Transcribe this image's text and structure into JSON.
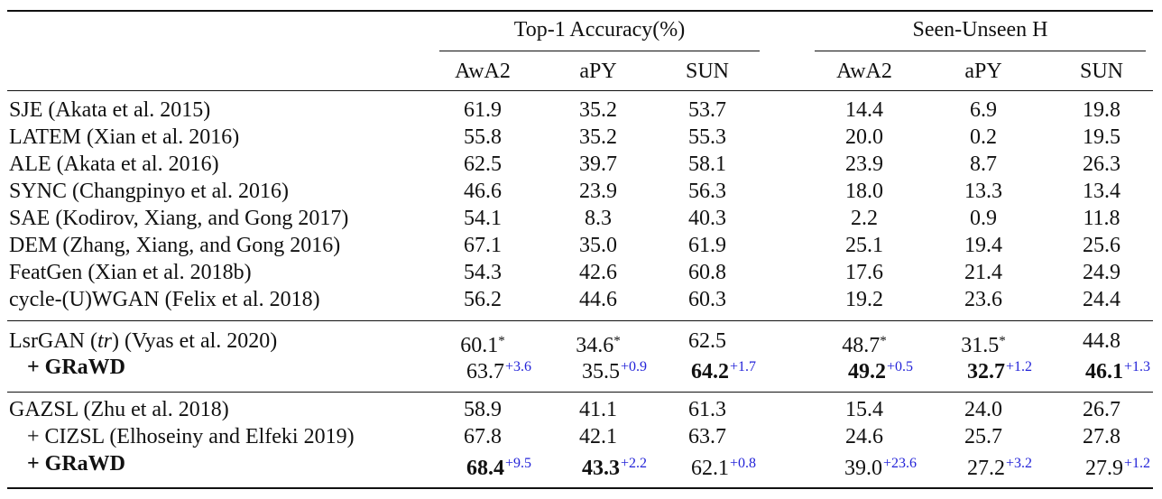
{
  "table": {
    "group_headers": [
      "Top-1 Accuracy(%)",
      "Seen-Unseen H"
    ],
    "col_headers": [
      "AwA2",
      "aPY",
      "SUN",
      "AwA2",
      "aPY",
      "SUN"
    ],
    "rows": [
      {
        "method": "SJE",
        "cite": " (Akata et al. 2015)",
        "cells": [
          [
            "61.9",
            "",
            ""
          ],
          [
            "35.2",
            "",
            ""
          ],
          [
            "53.7",
            "",
            ""
          ],
          [
            "14.4",
            "",
            ""
          ],
          [
            "6.9",
            "",
            ""
          ],
          [
            "19.8",
            "",
            ""
          ]
        ]
      },
      {
        "method": "LATEM",
        "cite": " (Xian et al. 2016)",
        "cells": [
          [
            "55.8",
            "",
            ""
          ],
          [
            "35.2",
            "",
            ""
          ],
          [
            "55.3",
            "",
            ""
          ],
          [
            "20.0",
            "",
            ""
          ],
          [
            "0.2",
            "",
            ""
          ],
          [
            "19.5",
            "",
            ""
          ]
        ]
      },
      {
        "method": "ALE",
        "cite": " (Akata et al. 2016)",
        "cells": [
          [
            "62.5",
            "",
            ""
          ],
          [
            "39.7",
            "",
            ""
          ],
          [
            "58.1",
            "",
            ""
          ],
          [
            "23.9",
            "",
            ""
          ],
          [
            "8.7",
            "",
            ""
          ],
          [
            "26.3",
            "",
            ""
          ]
        ]
      },
      {
        "method": "SYNC",
        "cite": " (Changpinyo et al. 2016)",
        "cells": [
          [
            "46.6",
            "",
            ""
          ],
          [
            "23.9",
            "",
            ""
          ],
          [
            "56.3",
            "",
            ""
          ],
          [
            "18.0",
            "",
            ""
          ],
          [
            "13.3",
            "",
            ""
          ],
          [
            "13.4",
            "",
            ""
          ]
        ]
      },
      {
        "method": "SAE",
        "cite": " (Kodirov, Xiang, and Gong 2017)",
        "cells": [
          [
            "54.1",
            "",
            ""
          ],
          [
            "8.3",
            "",
            ""
          ],
          [
            "40.3",
            "",
            ""
          ],
          [
            "2.2",
            "",
            ""
          ],
          [
            "0.9",
            "",
            ""
          ],
          [
            "11.8",
            "",
            ""
          ]
        ]
      },
      {
        "method": "DEM",
        "cite": " (Zhang, Xiang, and Gong 2016)",
        "cells": [
          [
            "67.1",
            "",
            ""
          ],
          [
            "35.0",
            "",
            ""
          ],
          [
            "61.9",
            "",
            ""
          ],
          [
            "25.1",
            "",
            ""
          ],
          [
            "19.4",
            "",
            ""
          ],
          [
            "25.6",
            "",
            ""
          ]
        ]
      },
      {
        "method": "FeatGen",
        "cite": " (Xian et al. 2018b)",
        "cells": [
          [
            "54.3",
            "",
            ""
          ],
          [
            "42.6",
            "",
            ""
          ],
          [
            "60.8",
            "",
            ""
          ],
          [
            "17.6",
            "",
            ""
          ],
          [
            "21.4",
            "",
            ""
          ],
          [
            "24.9",
            "",
            ""
          ]
        ]
      },
      {
        "method": "cycle-(U)WGAN",
        "cite": " (Felix et al. 2018)",
        "cells": [
          [
            "56.2",
            "",
            ""
          ],
          [
            "44.6",
            "",
            ""
          ],
          [
            "60.3",
            "",
            ""
          ],
          [
            "19.2",
            "",
            ""
          ],
          [
            "23.6",
            "",
            ""
          ],
          [
            "24.4",
            "",
            ""
          ]
        ]
      },
      {
        "method": "LsrGAN (",
        "method_it": "tr",
        "method_tail": ") (Vyas et al. 2020)",
        "cells": [
          [
            "60.1",
            "*",
            ""
          ],
          [
            "34.6",
            "*",
            ""
          ],
          [
            "62.5",
            "",
            ""
          ],
          [
            "48.7",
            "*",
            ""
          ],
          [
            "31.5",
            "*",
            ""
          ],
          [
            "44.8",
            "",
            ""
          ]
        ]
      },
      {
        "method": "+ GRaWD",
        "bold_method": true,
        "indent": true,
        "cells": [
          [
            "63.7",
            "",
            "+3.6"
          ],
          [
            "35.5",
            "",
            "+0.9"
          ],
          [
            "64.2",
            "",
            "+1.7",
            "b"
          ],
          [
            "49.2",
            "",
            "+0.5",
            "b"
          ],
          [
            "32.7",
            "",
            "+1.2",
            "b"
          ],
          [
            "46.1",
            "",
            "+1.3",
            "b"
          ]
        ]
      },
      {
        "method": "GAZSL",
        "cite": " (Zhu et al. 2018)",
        "cells": [
          [
            "58.9",
            "",
            ""
          ],
          [
            "41.1",
            "",
            ""
          ],
          [
            "61.3",
            "",
            ""
          ],
          [
            "15.4",
            "",
            ""
          ],
          [
            "24.0",
            "",
            ""
          ],
          [
            "26.7",
            "",
            ""
          ]
        ]
      },
      {
        "method": "+ CIZSL",
        "cite": " (Elhoseiny and Elfeki 2019)",
        "indent": true,
        "cells": [
          [
            "67.8",
            "",
            ""
          ],
          [
            "42.1",
            "",
            ""
          ],
          [
            "63.7",
            "",
            ""
          ],
          [
            "24.6",
            "",
            ""
          ],
          [
            "25.7",
            "",
            ""
          ],
          [
            "27.8",
            "",
            ""
          ]
        ]
      },
      {
        "method": "+ GRaWD",
        "bold_method": true,
        "indent": true,
        "cells": [
          [
            "68.4",
            "",
            "+9.5",
            "b"
          ],
          [
            "43.3",
            "",
            "+2.2",
            "b"
          ],
          [
            "62.1",
            "",
            "+0.8"
          ],
          [
            "39.0",
            "",
            "+23.6"
          ],
          [
            "27.2",
            "",
            "+3.2"
          ],
          [
            "27.9",
            "",
            "+1.2"
          ]
        ]
      }
    ]
  }
}
